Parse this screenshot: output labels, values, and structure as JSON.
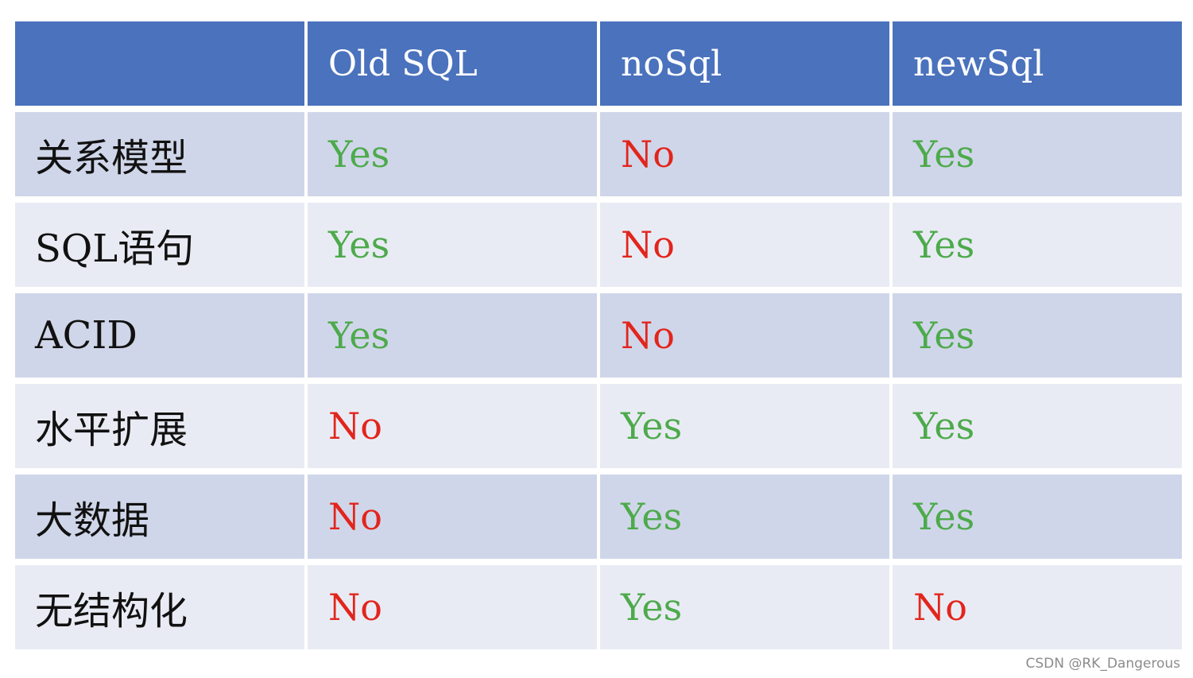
{
  "table": {
    "headers": [
      "",
      "Old SQL",
      "noSql",
      "newSql"
    ],
    "rows": [
      {
        "label": "关系模型",
        "values": [
          "Yes",
          "No",
          "Yes"
        ]
      },
      {
        "label": "SQL语句",
        "values": [
          "Yes",
          "No",
          "Yes"
        ]
      },
      {
        "label": "ACID",
        "values": [
          "Yes",
          "No",
          "Yes"
        ]
      },
      {
        "label": "水平扩展",
        "values": [
          "No",
          "Yes",
          "Yes"
        ]
      },
      {
        "label": "大数据",
        "values": [
          "No",
          "Yes",
          "Yes"
        ]
      },
      {
        "label": "无结构化",
        "values": [
          "No",
          "Yes",
          "No"
        ]
      }
    ]
  },
  "colors": {
    "header_bg": "#4a72bd",
    "row_bg_odd": "#d0d6e9",
    "row_bg_even": "#e9ebf4",
    "yes": "#4daa4b",
    "no": "#e2251c"
  },
  "watermark": "CSDN @RK_Dangerous"
}
